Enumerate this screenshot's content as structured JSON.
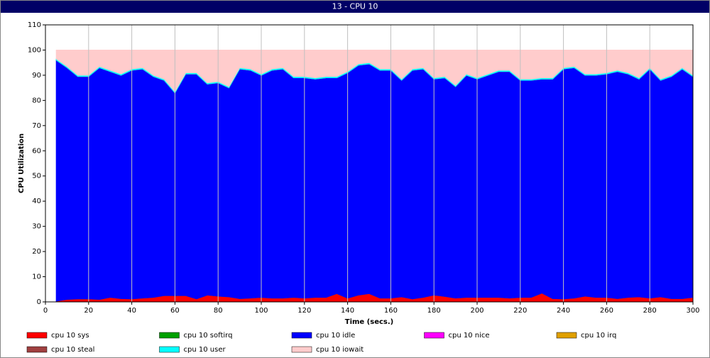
{
  "chart_data": {
    "type": "stacked-area",
    "title": "13 - CPU 10",
    "x_label": "Time (secs.)",
    "y_label": "CPU Utilization",
    "x": [
      5,
      10,
      15,
      20,
      25,
      30,
      35,
      40,
      45,
      50,
      55,
      60,
      65,
      70,
      75,
      80,
      85,
      90,
      95,
      100,
      105,
      110,
      115,
      120,
      125,
      130,
      135,
      140,
      145,
      150,
      155,
      160,
      165,
      170,
      175,
      180,
      185,
      190,
      195,
      200,
      205,
      210,
      215,
      220,
      225,
      230,
      235,
      240,
      245,
      250,
      255,
      260,
      265,
      270,
      275,
      280,
      285,
      290,
      295,
      300
    ],
    "xlim": [
      0,
      300
    ],
    "ylim": [
      0,
      110
    ],
    "xticks": [
      0,
      20,
      40,
      60,
      80,
      100,
      120,
      140,
      160,
      180,
      200,
      220,
      240,
      260,
      280,
      300
    ],
    "yticks": [
      0,
      10,
      20,
      30,
      40,
      50,
      60,
      70,
      80,
      90,
      100,
      110
    ],
    "grid": "x",
    "series": [
      {
        "name": "cpu 10 sys",
        "color": "#ff0000",
        "values": [
          0.3,
          1,
          1.2,
          1.2,
          1,
          1.8,
          1.3,
          1.2,
          1.5,
          1.8,
          2.5,
          2.5,
          2.5,
          1.2,
          2.7,
          2.3,
          2,
          1.3,
          1.5,
          1.8,
          1.5,
          1.5,
          1.8,
          1.5,
          1.8,
          1.8,
          3.3,
          1.5,
          2.7,
          3.3,
          1.5,
          1.5,
          2,
          1.2,
          1.8,
          2.7,
          2.2,
          1.5,
          1.8,
          1.8,
          1.8,
          1.8,
          1.5,
          1.8,
          1.8,
          3.5,
          1.3,
          1.2,
          1.5,
          2.3,
          1.8,
          1.8,
          1.3,
          1.8,
          2,
          1.5,
          2,
          1.3,
          1.3,
          1.8
        ]
      },
      {
        "name": "cpu 10 softirq",
        "color": "#00a000",
        "values": [
          0,
          0,
          0,
          0,
          0,
          0,
          0,
          0,
          0,
          0,
          0,
          0,
          0,
          0,
          0,
          0,
          0,
          0,
          0,
          0,
          0,
          0,
          0,
          0,
          0,
          0,
          0,
          0,
          0,
          0,
          0,
          0,
          0,
          0,
          0,
          0,
          0,
          0,
          0,
          0,
          0,
          0,
          0,
          0,
          0,
          0,
          0,
          0,
          0,
          0,
          0,
          0,
          0,
          0,
          0,
          0,
          0,
          0,
          0,
          0
        ]
      },
      {
        "name": "cpu 10 idle",
        "color": "#0000ff",
        "values": [
          95.7,
          92,
          88.3,
          88.3,
          92,
          89.7,
          88.7,
          90.8,
          91,
          87.7,
          85.5,
          80.5,
          88,
          89.3,
          83.8,
          84.7,
          83,
          91.2,
          90.5,
          88.2,
          90.5,
          91,
          87.2,
          87.5,
          86.7,
          87.2,
          85.7,
          89.5,
          91.3,
          91.2,
          90.5,
          90.5,
          86,
          90.8,
          90.7,
          85.8,
          86.8,
          84,
          88.2,
          86.7,
          88.2,
          89.7,
          90,
          86.2,
          86.2,
          85,
          87.2,
          91.3,
          91.5,
          87.7,
          88.2,
          88.7,
          90.2,
          88.7,
          86.5,
          91,
          86,
          88.2,
          91.2,
          87.7
        ]
      },
      {
        "name": "cpu 10 nice",
        "color": "#ff00ff",
        "values": [
          0,
          0,
          0,
          0,
          0,
          0,
          0,
          0,
          0,
          0,
          0,
          0,
          0,
          0,
          0,
          0,
          0,
          0,
          0,
          0,
          0,
          0,
          0,
          0,
          0,
          0,
          0,
          0,
          0,
          0,
          0,
          0,
          0,
          0,
          0,
          0,
          0,
          0,
          0,
          0,
          0,
          0,
          0,
          0,
          0,
          0,
          0,
          0,
          0,
          0,
          0,
          0,
          0,
          0,
          0,
          0,
          0,
          0,
          0,
          0
        ]
      },
      {
        "name": "cpu 10 irq",
        "color": "#e0a000",
        "values": [
          0,
          0,
          0,
          0,
          0,
          0,
          0,
          0,
          0,
          0,
          0,
          0,
          0,
          0,
          0,
          0,
          0,
          0,
          0,
          0,
          0,
          0,
          0,
          0,
          0,
          0,
          0,
          0,
          0,
          0,
          0,
          0,
          0,
          0,
          0,
          0,
          0,
          0,
          0,
          0,
          0,
          0,
          0,
          0,
          0,
          0,
          0,
          0,
          0,
          0,
          0,
          0,
          0,
          0,
          0,
          0,
          0,
          0,
          0,
          0
        ]
      },
      {
        "name": "cpu 10 steal",
        "color": "#a04040",
        "values": [
          0,
          0,
          0,
          0,
          0,
          0,
          0,
          0,
          0,
          0,
          0,
          0,
          0,
          0,
          0,
          0,
          0,
          0,
          0,
          0,
          0,
          0,
          0,
          0,
          0,
          0,
          0,
          0,
          0,
          0,
          0,
          0,
          0,
          0,
          0,
          0,
          0,
          0,
          0,
          0,
          0,
          0,
          0,
          0,
          0,
          0,
          0,
          0,
          0,
          0,
          0,
          0,
          0,
          0,
          0,
          0,
          0,
          0,
          0,
          0
        ]
      },
      {
        "name": "cpu 10 user",
        "color": "#00ffff",
        "values": [
          0.5,
          0.5,
          0.5,
          0.5,
          0.5,
          0.5,
          0.5,
          0.5,
          0.5,
          0.5,
          0.5,
          0.5,
          0.5,
          0.5,
          0.5,
          0.5,
          0.5,
          0.5,
          0.5,
          0.5,
          0.5,
          0.5,
          0.5,
          0.5,
          0.5,
          0.5,
          0.5,
          0.5,
          0.5,
          0.5,
          0.5,
          0.5,
          0.5,
          0.5,
          0.5,
          0.5,
          0.5,
          0.5,
          0.5,
          0.5,
          0.5,
          0.5,
          0.5,
          0.5,
          0.5,
          0.5,
          0.5,
          0.5,
          0.5,
          0.5,
          0.5,
          0.5,
          0.5,
          0.5,
          0.5,
          0.5,
          0.5,
          0.5,
          0.5,
          0.5
        ]
      },
      {
        "name": "cpu 10 iowait",
        "color": "#ffcccc",
        "values": [
          3.5,
          6.5,
          10,
          10,
          6.5,
          8,
          9.5,
          7.5,
          7,
          10,
          11.5,
          16.5,
          9,
          9,
          13,
          12.5,
          14.5,
          7,
          7.5,
          9.5,
          7.5,
          7,
          10.5,
          10.5,
          11,
          10.5,
          10.5,
          8.5,
          5.5,
          5,
          7.5,
          7.5,
          11.5,
          7.5,
          7,
          11,
          10.5,
          14,
          9.5,
          11,
          9.5,
          8,
          8,
          11.5,
          11.5,
          11,
          11,
          7,
          6.5,
          9.5,
          9.5,
          9,
          8,
          9,
          11,
          7,
          11.5,
          10,
          7,
          10
        ]
      }
    ]
  }
}
